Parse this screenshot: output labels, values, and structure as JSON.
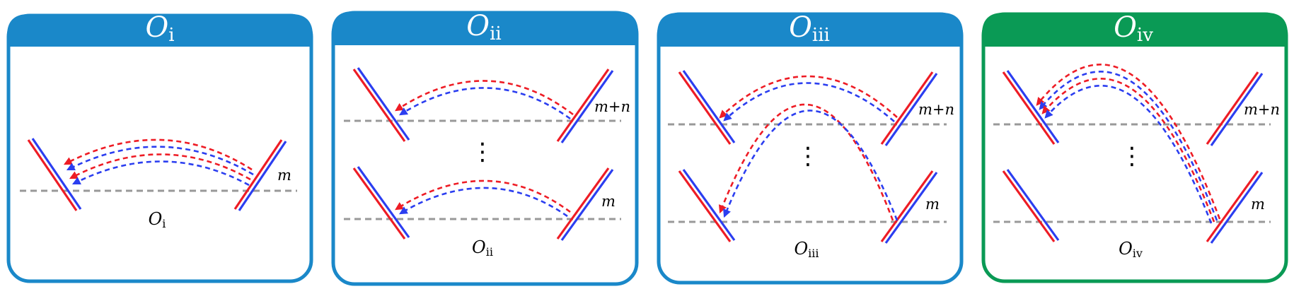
{
  "colors": {
    "blue_header": "#1a88c9",
    "green_header": "#0a9a55",
    "red_line": "#ee1c25",
    "blue_line": "#2b3ef0",
    "dash_gray": "#999999"
  },
  "panels": [
    {
      "id": "i",
      "title_letter": "O",
      "title_sub": "i",
      "caption_letter": "O",
      "caption_sub": "i",
      "level_top_label": "",
      "level_bottom_label": "m",
      "has_vdots": false,
      "header": "blue"
    },
    {
      "id": "ii",
      "title_letter": "O",
      "title_sub": "ii",
      "caption_letter": "O",
      "caption_sub": "ii",
      "level_top_label": "m+n",
      "level_bottom_label": "m",
      "has_vdots": true,
      "header": "blue"
    },
    {
      "id": "iii",
      "title_letter": "O",
      "title_sub": "iii",
      "caption_letter": "O",
      "caption_sub": "iii",
      "level_top_label": "m+n",
      "level_bottom_label": "m",
      "has_vdots": true,
      "header": "blue"
    },
    {
      "id": "iv",
      "title_letter": "O",
      "title_sub": "iv",
      "caption_letter": "O",
      "caption_sub": "iv",
      "level_top_label": "m+n",
      "level_bottom_label": "m",
      "has_vdots": true,
      "header": "green"
    }
  ],
  "vdots": "⋮"
}
